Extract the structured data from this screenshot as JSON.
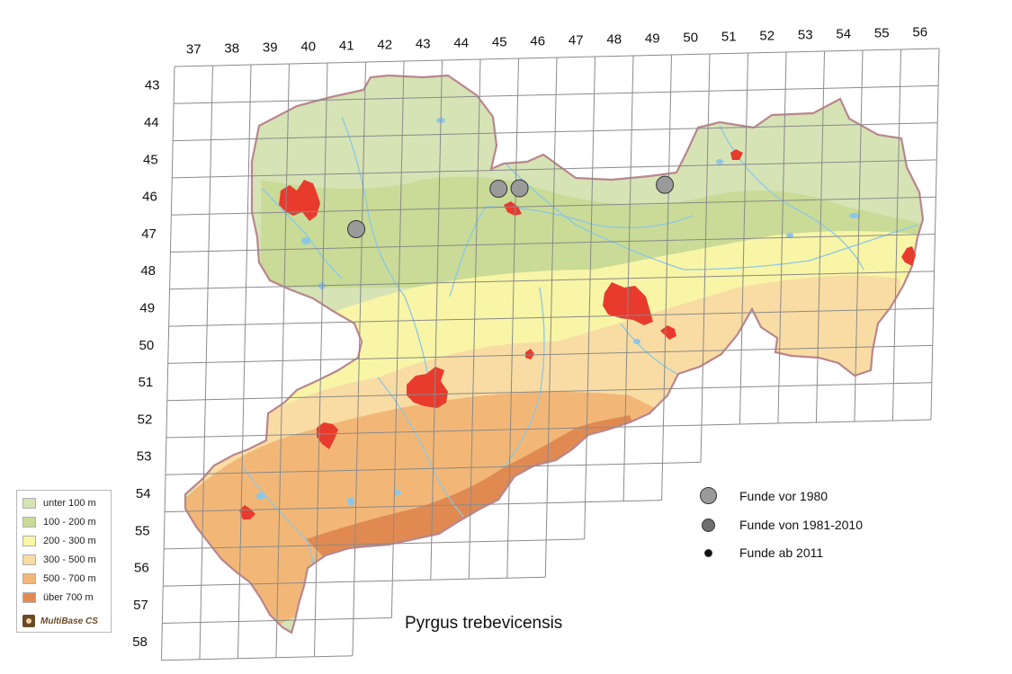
{
  "grid": {
    "columns": [
      "37",
      "38",
      "39",
      "40",
      "41",
      "42",
      "43",
      "44",
      "45",
      "46",
      "47",
      "48",
      "49",
      "50",
      "51",
      "52",
      "53",
      "54",
      "55",
      "56"
    ],
    "rows": [
      "43",
      "44",
      "45",
      "46",
      "47",
      "48",
      "49",
      "50",
      "51",
      "52",
      "53",
      "54",
      "55",
      "56",
      "57",
      "58"
    ]
  },
  "elevation_legend": {
    "items": [
      {
        "label": "unter 100 m",
        "color": "#d6e3b5"
      },
      {
        "label": "100 - 200 m",
        "color": "#c9db96"
      },
      {
        "label": "200 - 300 m",
        "color": "#f8f5a6"
      },
      {
        "label": "300 - 500 m",
        "color": "#f9dca3"
      },
      {
        "label": "500 - 700 m",
        "color": "#f2b777"
      },
      {
        "label": "über 700 m",
        "color": "#e08a52"
      }
    ],
    "brand": "MultiBase CS"
  },
  "finds_legend": {
    "items": [
      {
        "label": "Funde vor 1980",
        "color": "#9a9a9a"
      },
      {
        "label": "Funde von 1981-2010",
        "color": "#6e6e6e"
      },
      {
        "label": "Funde ab 2011",
        "color": "#111111"
      }
    ]
  },
  "species": "Pyrgus trebevicensis",
  "finds": [
    {
      "col": "42",
      "row": "47",
      "period": "Funde vor 1980"
    },
    {
      "col": "45",
      "row": "46",
      "period": "Funde vor 1980"
    },
    {
      "col": "46",
      "row": "46",
      "period": "Funde vor 1980"
    },
    {
      "col": "49",
      "row": "46",
      "period": "Funde vor 1980"
    }
  ],
  "colors": {
    "border": "#b9868e",
    "urban": "#e83b2e",
    "water": "#8cc7e6",
    "grid": "#8a8a8a"
  }
}
